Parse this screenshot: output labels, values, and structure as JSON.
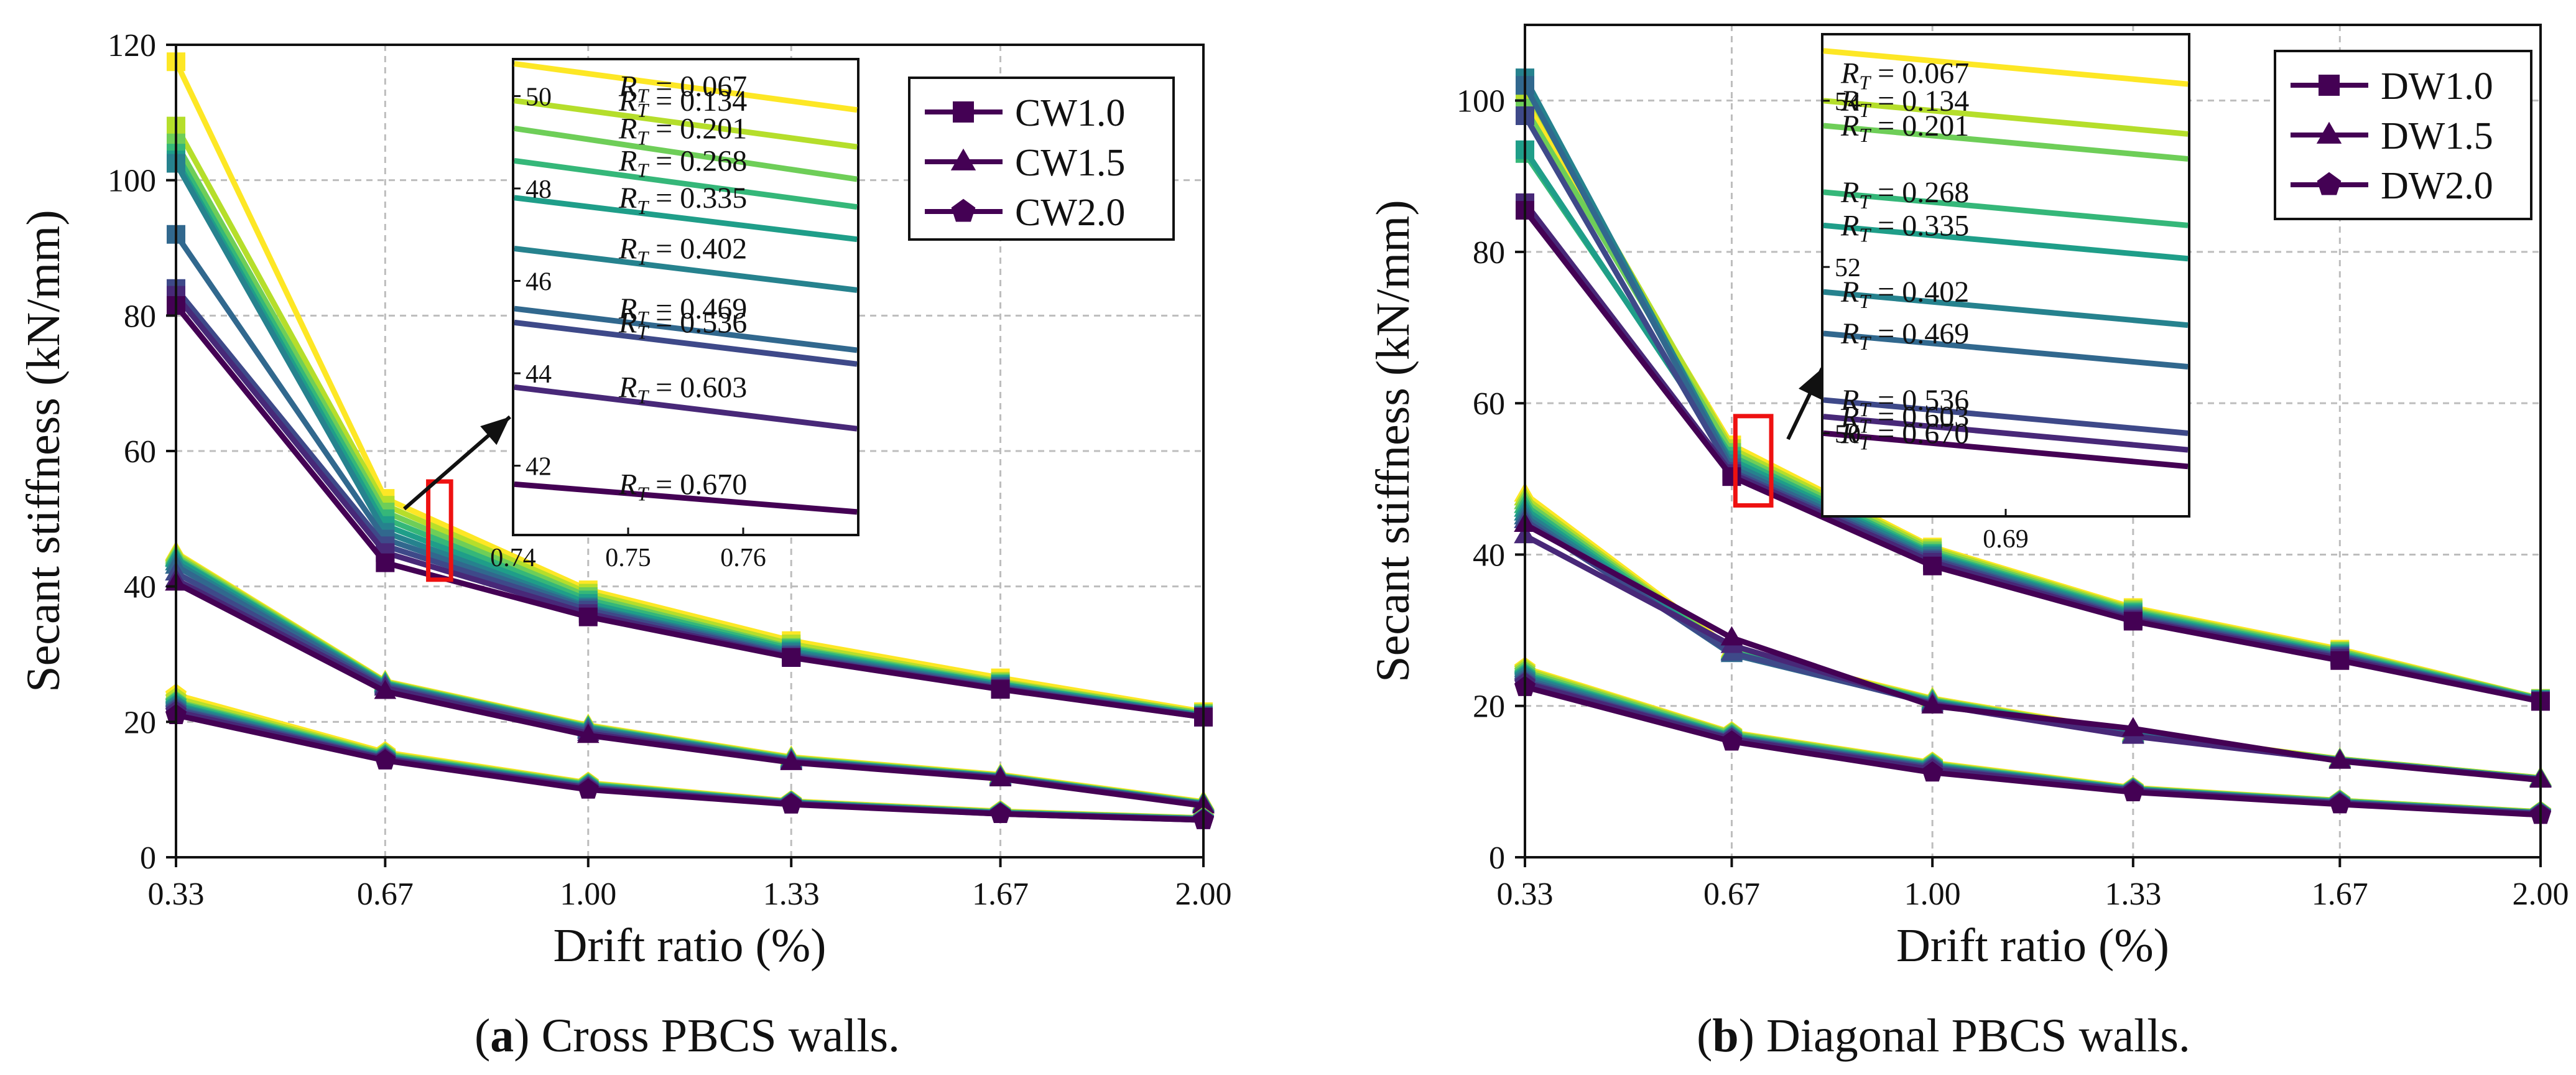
{
  "chart_data": [
    {
      "id": "a",
      "type": "line",
      "caption_letter": "a",
      "caption_text": " Cross PBCS walls.",
      "xlabel": "Drift ratio (%)",
      "ylabel": "Secant stiffness (kN/mm)",
      "xlim": [
        0.33,
        2.0
      ],
      "ylim": [
        0,
        120
      ],
      "x": [
        0.33,
        0.67,
        1.0,
        1.33,
        1.67,
        2.0
      ],
      "xticks": [
        "0.33",
        "0.67",
        "1.00",
        "1.33",
        "1.67",
        "2.00"
      ],
      "yticks": [
        "0",
        "20",
        "40",
        "60",
        "80",
        "100",
        "120"
      ],
      "legend": [
        {
          "name": "CW1.0",
          "marker": "square"
        },
        {
          "name": "CW1.5",
          "marker": "triangle"
        },
        {
          "name": "CW2.0",
          "marker": "pentagon"
        }
      ],
      "rt_labels": [
        "0.067",
        "0.134",
        "0.201",
        "0.268",
        "0.335",
        "0.402",
        "0.469",
        "0.536",
        "0.603",
        "0.670"
      ],
      "rt_colors": [
        "#fde725",
        "#b5de2b",
        "#6ece58",
        "#35b779",
        "#1f9e89",
        "#26828e",
        "#31688e",
        "#3e4989",
        "#482878",
        "#440154"
      ],
      "groups": [
        {
          "name": "CW1.0",
          "marker": "square",
          "series": [
            [
              117.5,
              53.0,
              39.5,
              32.0,
              26.5,
              21.5
            ],
            [
              108.0,
              52.0,
              39.0,
              31.5,
              26.0,
              21.3
            ],
            [
              105.5,
              51.0,
              38.5,
              31.0,
              25.8,
              21.2
            ],
            [
              104.0,
              50.0,
              38.0,
              30.8,
              25.6,
              21.0
            ],
            [
              103.0,
              49.0,
              37.5,
              30.5,
              25.5,
              21.0
            ],
            [
              102.5,
              48.0,
              37.0,
              30.3,
              25.3,
              20.9
            ],
            [
              92.0,
              47.0,
              36.8,
              30.0,
              25.2,
              20.8
            ],
            [
              84.0,
              46.0,
              36.5,
              29.8,
              25.0,
              20.8
            ],
            [
              83.0,
              45.0,
              36.0,
              29.6,
              24.9,
              20.7
            ],
            [
              81.5,
              43.5,
              35.5,
              29.5,
              24.8,
              20.7
            ]
          ]
        },
        {
          "name": "CW1.5",
          "marker": "triangle",
          "series": [
            [
              45.0,
              26.0,
              19.5,
              14.8,
              12.2,
              8.2
            ],
            [
              44.8,
              25.9,
              19.4,
              14.7,
              12.1,
              8.1
            ],
            [
              44.5,
              25.8,
              19.3,
              14.6,
              12.0,
              8.0
            ],
            [
              44.2,
              25.7,
              19.2,
              14.5,
              12.0,
              8.0
            ],
            [
              44.0,
              25.6,
              19.1,
              14.4,
              11.9,
              7.9
            ],
            [
              43.5,
              25.5,
              19.0,
              14.4,
              11.9,
              7.9
            ],
            [
              43.0,
              25.4,
              18.8,
              14.3,
              11.8,
              7.8
            ],
            [
              42.0,
              25.2,
              18.6,
              14.2,
              11.8,
              7.8
            ],
            [
              41.0,
              25.0,
              18.3,
              14.1,
              11.7,
              7.7
            ],
            [
              40.5,
              24.5,
              18.0,
              14.0,
              11.6,
              7.6
            ]
          ]
        },
        {
          "name": "CW2.0",
          "marker": "pentagon",
          "series": [
            [
              24.0,
              15.5,
              11.0,
              8.3,
              6.8,
              5.8
            ],
            [
              23.5,
              15.3,
              10.9,
              8.2,
              6.7,
              5.8
            ],
            [
              23.0,
              15.2,
              10.8,
              8.2,
              6.7,
              5.7
            ],
            [
              22.8,
              15.0,
              10.7,
              8.1,
              6.6,
              5.7
            ],
            [
              22.5,
              14.9,
              10.6,
              8.1,
              6.6,
              5.7
            ],
            [
              22.3,
              14.8,
              10.5,
              8.0,
              6.5,
              5.6
            ],
            [
              22.0,
              14.7,
              10.4,
              8.0,
              6.5,
              5.6
            ],
            [
              21.8,
              14.6,
              10.3,
              7.9,
              6.5,
              5.6
            ],
            [
              21.5,
              14.5,
              10.2,
              7.9,
              6.4,
              5.5
            ],
            [
              21.0,
              14.3,
              10.0,
              7.8,
              6.4,
              5.5
            ]
          ]
        }
      ],
      "inset": {
        "xlim": [
          0.74,
          0.77
        ],
        "ylim": [
          40.5,
          50.8
        ],
        "xticks": [
          "0.74",
          "0.75",
          "0.76"
        ],
        "yticks": [
          "42",
          "44",
          "46",
          "48",
          "50"
        ],
        "lines": [
          [
            50.7,
            49.7
          ],
          [
            49.9,
            48.9
          ],
          [
            49.3,
            48.2
          ],
          [
            48.6,
            47.6
          ],
          [
            47.8,
            46.9
          ],
          [
            46.7,
            45.8
          ],
          [
            45.4,
            44.5
          ],
          [
            45.1,
            44.2
          ],
          [
            43.7,
            42.8
          ],
          [
            41.6,
            41.0
          ]
        ]
      }
    },
    {
      "id": "b",
      "type": "line",
      "caption_letter": "b",
      "caption_text": " Diagonal PBCS walls.",
      "xlabel": "Drift ratio (%)",
      "ylabel": "Secant stiffness (kN/mm)",
      "xlim": [
        0.33,
        2.0
      ],
      "ylim": [
        0,
        110
      ],
      "x": [
        0.33,
        0.67,
        1.0,
        1.33,
        1.67,
        2.0
      ],
      "xticks": [
        "0.33",
        "0.67",
        "1.00",
        "1.33",
        "1.67",
        "2.00"
      ],
      "yticks": [
        "0",
        "20",
        "40",
        "60",
        "80",
        "100"
      ],
      "legend": [
        {
          "name": "DW1.0",
          "marker": "square"
        },
        {
          "name": "DW1.5",
          "marker": "triangle"
        },
        {
          "name": "DW2.0",
          "marker": "pentagon"
        }
      ],
      "rt_labels": [
        "0.067",
        "0.134",
        "0.201",
        "0.268",
        "0.335",
        "0.402",
        "0.469",
        "0.536",
        "0.603",
        "0.670"
      ],
      "rt_colors": [
        "#fde725",
        "#b5de2b",
        "#6ece58",
        "#35b779",
        "#1f9e89",
        "#26828e",
        "#31688e",
        "#3e4989",
        "#482878",
        "#440154"
      ],
      "groups": [
        {
          "name": "DW1.0",
          "marker": "square",
          "series": [
            [
              100.0,
              54.5,
              41.0,
              33.0,
              27.5,
              21.0
            ],
            [
              101.5,
              54.0,
              40.8,
              32.8,
              27.3,
              21.0
            ],
            [
              99.0,
              53.5,
              40.5,
              32.6,
              27.2,
              20.9
            ],
            [
              93.0,
              53.0,
              40.2,
              32.4,
              27.0,
              20.9
            ],
            [
              93.5,
              52.5,
              40.0,
              32.2,
              26.8,
              20.8
            ],
            [
              103.0,
              52.0,
              39.8,
              32.0,
              26.7,
              20.8
            ],
            [
              102.0,
              51.5,
              39.5,
              31.8,
              26.6,
              20.7
            ],
            [
              98.0,
              51.0,
              39.3,
              31.6,
              26.5,
              20.7
            ],
            [
              86.5,
              50.7,
              39.0,
              31.4,
              26.3,
              20.6
            ],
            [
              85.5,
              50.3,
              38.5,
              31.2,
              26.0,
              20.6
            ]
          ]
        },
        {
          "name": "DW1.5",
          "marker": "triangle",
          "series": [
            [
              48.0,
              27.5,
              21.0,
              16.5,
              13.0,
              10.5
            ],
            [
              47.5,
              27.3,
              20.9,
              16.4,
              13.0,
              10.5
            ],
            [
              47.0,
              27.2,
              20.8,
              16.3,
              12.9,
              10.4
            ],
            [
              46.5,
              27.1,
              20.7,
              16.3,
              12.9,
              10.4
            ],
            [
              46.0,
              27.0,
              20.6,
              16.2,
              12.9,
              10.4
            ],
            [
              45.5,
              27.0,
              20.5,
              16.2,
              12.8,
              10.3
            ],
            [
              45.0,
              26.8,
              20.4,
              16.1,
              12.8,
              10.3
            ],
            [
              44.5,
              27.0,
              20.3,
              16.1,
              12.8,
              10.3
            ],
            [
              42.5,
              28.0,
              20.2,
              16.0,
              12.8,
              10.3
            ],
            [
              44.0,
              29.0,
              20.0,
              17.0,
              12.7,
              10.2
            ]
          ]
        },
        {
          "name": "DW2.0",
          "marker": "pentagon",
          "series": [
            [
              25.0,
              16.5,
              12.5,
              9.2,
              7.5,
              6.0
            ],
            [
              24.8,
              16.4,
              12.4,
              9.1,
              7.5,
              6.0
            ],
            [
              24.5,
              16.3,
              12.3,
              9.1,
              7.4,
              5.9
            ],
            [
              24.2,
              16.1,
              12.2,
              9.0,
              7.4,
              5.9
            ],
            [
              24.0,
              16.0,
              12.1,
              9.0,
              7.3,
              5.9
            ],
            [
              23.8,
              15.9,
              12.0,
              8.9,
              7.3,
              5.8
            ],
            [
              23.5,
              15.8,
              11.9,
              8.9,
              7.2,
              5.8
            ],
            [
              23.2,
              15.7,
              11.8,
              8.8,
              7.2,
              5.8
            ],
            [
              23.0,
              15.6,
              11.6,
              8.8,
              7.1,
              5.7
            ],
            [
              22.5,
              15.3,
              11.2,
              8.6,
              7.0,
              5.6
            ]
          ]
        }
      ],
      "inset": {
        "xlim": [
          0.686,
          0.694
        ],
        "ylim": [
          49.0,
          54.8
        ],
        "xticks": [
          "0.69"
        ],
        "yticks": [
          "50",
          "52",
          "54"
        ],
        "lines": [
          [
            54.6,
            54.2
          ],
          [
            54.0,
            53.6
          ],
          [
            53.7,
            53.3
          ],
          [
            52.9,
            52.5
          ],
          [
            52.5,
            52.1
          ],
          [
            51.7,
            51.3
          ],
          [
            51.2,
            50.8
          ],
          [
            50.4,
            50.0
          ],
          [
            50.2,
            49.8
          ],
          [
            50.0,
            49.6
          ]
        ]
      }
    }
  ]
}
